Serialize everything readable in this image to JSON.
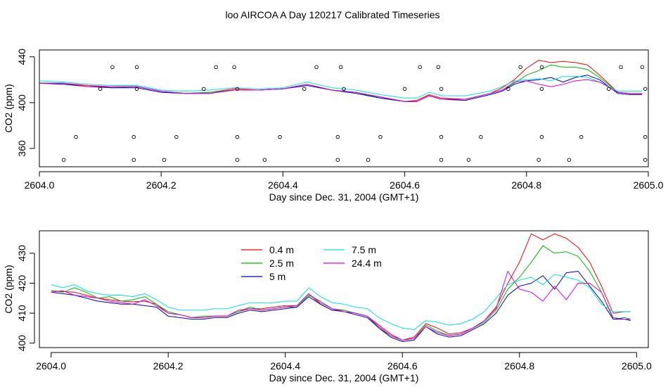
{
  "chart_data": [
    {
      "type": "line",
      "title": "loo AIRCOA A  Day 120217  Calibrated Timeseries",
      "xlabel": "Day since Dec. 31, 2004 (GMT+1)",
      "ylabel": "CO2 (ppm)",
      "xlim": [
        2604.0,
        2605.0
      ],
      "ylim": [
        344,
        446
      ],
      "xticks": [
        2604.0,
        2604.2,
        2604.4,
        2604.6,
        2604.8,
        2605.0
      ],
      "xtick_labels": [
        "2604.0",
        "2604.2",
        "2604.4",
        "2604.6",
        "2604.8",
        "2605.0"
      ],
      "yticks": [
        360,
        400,
        440
      ],
      "ytick_labels": [
        "360",
        "400",
        "440"
      ],
      "x": [
        2604.0,
        2604.04,
        2604.08,
        2604.12,
        2604.16,
        2604.2,
        2604.24,
        2604.28,
        2604.32,
        2604.36,
        2604.4,
        2604.44,
        2604.48,
        2604.52,
        2604.56,
        2604.6,
        2604.62,
        2604.64,
        2604.66,
        2604.7,
        2604.74,
        2604.76,
        2604.78,
        2604.8,
        2604.82,
        2604.84,
        2604.86,
        2604.88,
        2604.9,
        2604.92,
        2604.95,
        2604.97,
        2604.99
      ],
      "series": [
        {
          "color": "#ff0000",
          "values": [
            417,
            417,
            415,
            414,
            414,
            410,
            408,
            409,
            412,
            411,
            412,
            416,
            411,
            409,
            405,
            401,
            402,
            407,
            404,
            403,
            408,
            413,
            420,
            430,
            437,
            435,
            436,
            435,
            433,
            424,
            409,
            408,
            408
          ]
        },
        {
          "color": "#00bb00",
          "values": [
            417,
            417,
            414,
            413,
            414,
            410,
            408,
            409,
            411,
            411,
            412,
            416,
            411,
            409,
            404,
            401,
            401,
            406,
            403,
            403,
            408,
            411,
            417,
            424,
            428,
            433,
            431,
            431,
            429,
            422,
            409,
            408,
            408
          ]
        },
        {
          "color": "#0000cc",
          "values": [
            417,
            416,
            414,
            413,
            413,
            409,
            408,
            408,
            411,
            411,
            412,
            415,
            411,
            408,
            404,
            401,
            401,
            406,
            403,
            402,
            407,
            410,
            416,
            419,
            420,
            422,
            418,
            422,
            424,
            420,
            408,
            407,
            407
          ]
        },
        {
          "color": "#00e5e5",
          "values": [
            419,
            418,
            416,
            415,
            415,
            411,
            410,
            411,
            413,
            412,
            413,
            418,
            413,
            411,
            407,
            404,
            404,
            409,
            406,
            406,
            410,
            414,
            419,
            420,
            421,
            419,
            423,
            423,
            422,
            418,
            410,
            410,
            410
          ]
        },
        {
          "color": "#e000e0",
          "values": [
            417,
            417,
            414,
            414,
            414,
            410,
            408,
            408,
            411,
            411,
            412,
            416,
            411,
            409,
            405,
            401,
            401,
            406,
            403,
            403,
            408,
            411,
            418,
            419,
            416,
            414,
            416,
            419,
            420,
            418,
            409,
            408,
            408
          ]
        }
      ],
      "markers": [
        {
          "x": 2604.04,
          "y": 350
        },
        {
          "x": 2604.06,
          "y": 370
        },
        {
          "x": 2604.1,
          "y": 412
        },
        {
          "x": 2604.12,
          "y": 431
        },
        {
          "x": 2604.155,
          "y": 370
        },
        {
          "x": 2604.155,
          "y": 350
        },
        {
          "x": 2604.16,
          "y": 431
        },
        {
          "x": 2604.16,
          "y": 412
        },
        {
          "x": 2604.205,
          "y": 350
        },
        {
          "x": 2604.225,
          "y": 370
        },
        {
          "x": 2604.27,
          "y": 412
        },
        {
          "x": 2604.29,
          "y": 431
        },
        {
          "x": 2604.32,
          "y": 431
        },
        {
          "x": 2604.325,
          "y": 370
        },
        {
          "x": 2604.325,
          "y": 350
        },
        {
          "x": 2604.325,
          "y": 412
        },
        {
          "x": 2604.37,
          "y": 350
        },
        {
          "x": 2604.395,
          "y": 370
        },
        {
          "x": 2604.435,
          "y": 412
        },
        {
          "x": 2604.455,
          "y": 431
        },
        {
          "x": 2604.49,
          "y": 350
        },
        {
          "x": 2604.49,
          "y": 370
        },
        {
          "x": 2604.495,
          "y": 431
        },
        {
          "x": 2604.5,
          "y": 412
        },
        {
          "x": 2604.54,
          "y": 350
        },
        {
          "x": 2604.56,
          "y": 370
        },
        {
          "x": 2604.6,
          "y": 412
        },
        {
          "x": 2604.625,
          "y": 431
        },
        {
          "x": 2604.66,
          "y": 370
        },
        {
          "x": 2604.66,
          "y": 350
        },
        {
          "x": 2604.655,
          "y": 431
        },
        {
          "x": 2604.66,
          "y": 412
        },
        {
          "x": 2604.705,
          "y": 350
        },
        {
          "x": 2604.725,
          "y": 370
        },
        {
          "x": 2604.77,
          "y": 412
        },
        {
          "x": 2604.79,
          "y": 431
        },
        {
          "x": 2604.82,
          "y": 350
        },
        {
          "x": 2604.825,
          "y": 370
        },
        {
          "x": 2604.825,
          "y": 412
        },
        {
          "x": 2604.825,
          "y": 431
        },
        {
          "x": 2604.87,
          "y": 350
        },
        {
          "x": 2604.89,
          "y": 370
        },
        {
          "x": 2604.935,
          "y": 412
        },
        {
          "x": 2604.955,
          "y": 431
        },
        {
          "x": 2604.99,
          "y": 431
        },
        {
          "x": 2604.995,
          "y": 370
        },
        {
          "x": 2604.995,
          "y": 350
        },
        {
          "x": 2604.995,
          "y": 412
        }
      ]
    },
    {
      "type": "line",
      "xlabel": "Day since Dec. 31, 2004 (GMT+1)",
      "ylabel": "CO2 (ppm)",
      "xlim": [
        2603.98,
        2605.02
      ],
      "ylim": [
        398.5,
        437.5
      ],
      "xticks": [
        2604.0,
        2604.2,
        2604.4,
        2604.6,
        2604.8,
        2605.0
      ],
      "xtick_labels": [
        "2604.0",
        "2604.2",
        "2604.4",
        "2604.6",
        "2604.8",
        "2605.0"
      ],
      "yticks": [
        400,
        410,
        420,
        430
      ],
      "ytick_labels": [
        "400",
        "410",
        "420",
        "430"
      ],
      "legend": {
        "position": "top-center",
        "columns": 2
      },
      "x": [
        2604.0,
        2604.02,
        2604.04,
        2604.06,
        2604.08,
        2604.1,
        2604.12,
        2604.14,
        2604.16,
        2604.18,
        2604.2,
        2604.22,
        2604.24,
        2604.26,
        2604.28,
        2604.3,
        2604.32,
        2604.34,
        2604.36,
        2604.38,
        2604.4,
        2604.42,
        2604.44,
        2604.46,
        2604.48,
        2604.5,
        2604.52,
        2604.54,
        2604.56,
        2604.58,
        2604.6,
        2604.62,
        2604.64,
        2604.66,
        2604.68,
        2604.7,
        2604.72,
        2604.74,
        2604.76,
        2604.78,
        2604.8,
        2604.82,
        2604.84,
        2604.86,
        2604.88,
        2604.9,
        2604.92,
        2604.94,
        2604.96,
        2604.98,
        2604.99
      ],
      "series": [
        {
          "name": "0.4 m",
          "color": "#ff0000",
          "values": [
            417.5,
            417.2,
            417.0,
            416.0,
            415.0,
            414.5,
            414.0,
            413.8,
            414.0,
            413.0,
            410.0,
            409.5,
            408.5,
            408.5,
            409.0,
            409.0,
            410.5,
            411.5,
            411.5,
            412.0,
            412.5,
            412.5,
            416.5,
            413.0,
            411.0,
            411.0,
            410.0,
            409.0,
            406.0,
            403.0,
            401.0,
            402.0,
            406.5,
            405.0,
            403.0,
            403.5,
            405.0,
            407.5,
            412.0,
            420.0,
            427.0,
            436.5,
            434.5,
            436.5,
            435.0,
            432.0,
            427.0,
            419.0,
            410.0,
            410.5,
            410.5
          ]
        },
        {
          "name": "2.5 m",
          "color": "#00bb00",
          "values": [
            417.5,
            417.0,
            418.5,
            417.0,
            415.0,
            415.5,
            414.0,
            414.5,
            415.5,
            413.0,
            410.5,
            409.5,
            408.5,
            409.0,
            409.0,
            409.0,
            410.5,
            412.0,
            411.0,
            411.5,
            412.0,
            412.0,
            416.0,
            414.0,
            411.5,
            411.0,
            410.0,
            409.0,
            405.0,
            402.5,
            401.0,
            401.5,
            406.0,
            404.0,
            402.5,
            403.0,
            405.0,
            407.0,
            411.0,
            418.0,
            422.0,
            427.0,
            432.5,
            430.0,
            430.5,
            429.0,
            424.0,
            417.0,
            408.0,
            408.5,
            408.0
          ]
        },
        {
          "name": "5 m",
          "color": "#0000cc",
          "values": [
            417.0,
            416.5,
            416.0,
            415.0,
            414.0,
            413.5,
            413.0,
            413.0,
            412.5,
            412.0,
            409.0,
            408.5,
            408.0,
            408.0,
            408.5,
            408.5,
            410.0,
            411.0,
            410.5,
            411.0,
            411.5,
            412.0,
            415.5,
            413.0,
            411.0,
            410.5,
            409.5,
            408.5,
            405.0,
            402.0,
            400.5,
            401.0,
            405.5,
            403.0,
            402.0,
            402.5,
            404.5,
            406.5,
            410.0,
            416.0,
            419.0,
            420.0,
            422.5,
            418.0,
            423.5,
            424.0,
            419.0,
            414.0,
            408.0,
            408.0,
            407.5
          ]
        },
        {
          "name": "7.5 m",
          "color": "#00e5e5",
          "values": [
            419.5,
            418.5,
            419.5,
            417.5,
            416.5,
            416.0,
            416.0,
            415.5,
            416.5,
            414.5,
            412.0,
            411.0,
            411.0,
            411.0,
            411.5,
            411.5,
            412.5,
            413.5,
            413.5,
            413.5,
            414.0,
            414.0,
            418.5,
            415.5,
            413.5,
            413.0,
            412.0,
            411.5,
            408.5,
            406.5,
            405.0,
            404.5,
            407.5,
            407.0,
            406.0,
            406.5,
            408.0,
            410.5,
            415.0,
            419.5,
            421.0,
            422.0,
            419.5,
            423.0,
            422.0,
            421.0,
            418.5,
            413.0,
            410.5,
            410.5,
            410.5
          ]
        },
        {
          "name": "24.4 m",
          "color": "#e000e0",
          "values": [
            417.0,
            417.5,
            416.0,
            415.5,
            415.0,
            414.0,
            413.5,
            413.0,
            414.5,
            412.5,
            410.0,
            409.5,
            408.5,
            408.5,
            409.0,
            409.0,
            411.0,
            411.5,
            411.0,
            411.5,
            412.0,
            412.5,
            416.5,
            413.5,
            411.5,
            410.5,
            410.0,
            409.0,
            405.5,
            402.5,
            401.0,
            401.5,
            405.5,
            403.5,
            402.5,
            403.0,
            405.0,
            407.5,
            411.5,
            424.0,
            418.0,
            417.0,
            414.0,
            419.0,
            414.5,
            420.0,
            420.0,
            417.0,
            408.5,
            408.0,
            408.0
          ]
        }
      ]
    }
  ]
}
